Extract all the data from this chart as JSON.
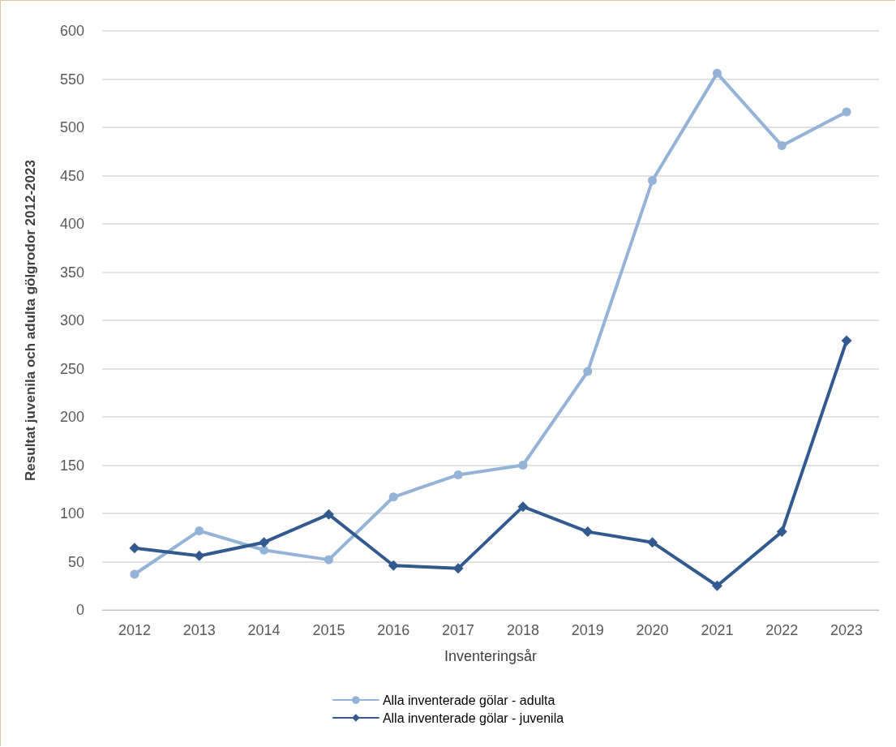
{
  "chart_data": {
    "type": "line",
    "xlabel": "Inventeringsår",
    "ylabel": "Resultat juvenila och adulta gölgrodor 2012-2023",
    "categories": [
      "2012",
      "2013",
      "2014",
      "2015",
      "2016",
      "2017",
      "2018",
      "2019",
      "2020",
      "2021",
      "2022",
      "2023"
    ],
    "series": [
      {
        "name": "Alla inventerade gölar - adulta",
        "color": "#95b3d7",
        "marker": "circle",
        "values": [
          37,
          82,
          62,
          52,
          117,
          140,
          150,
          247,
          445,
          556,
          481,
          516
        ]
      },
      {
        "name": "Alla inventerade gölar - juvenila",
        "color": "#335a8f",
        "marker": "diamond",
        "values": [
          64,
          56,
          70,
          99,
          46,
          43,
          107,
          81,
          70,
          25,
          81,
          279
        ]
      }
    ],
    "ylim": [
      0,
      600
    ],
    "yticks": [
      0,
      50,
      100,
      150,
      200,
      250,
      300,
      350,
      400,
      450,
      500,
      550,
      600
    ],
    "grid": "y",
    "legend": "bottom",
    "line_style": "solid"
  }
}
